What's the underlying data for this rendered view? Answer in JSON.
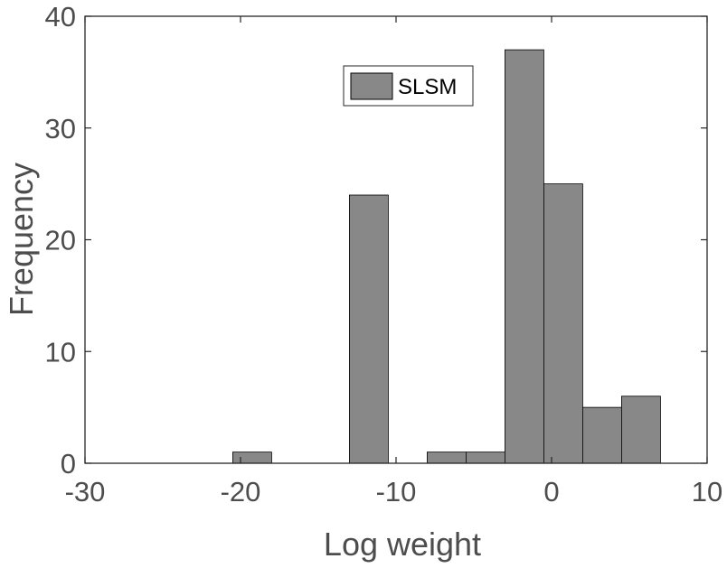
{
  "chart_data": {
    "type": "bar",
    "xlabel": "Log weight",
    "ylabel": "Frequency",
    "xlim": [
      -30,
      10
    ],
    "ylim": [
      0,
      40
    ],
    "xticks": [
      "-30",
      "-20",
      "-10",
      "0",
      "10"
    ],
    "yticks": [
      "0",
      "10",
      "20",
      "30",
      "40"
    ],
    "bin_edges": [
      -20.5,
      -18,
      -15.5,
      -13,
      -10.5,
      -8,
      -5.5,
      -3,
      -0.5,
      2,
      4.5,
      7
    ],
    "series": [
      {
        "name": "SLSM",
        "values": [
          1,
          0,
          0,
          24,
          0,
          1,
          1,
          37,
          25,
          5,
          6
        ]
      }
    ],
    "legend": {
      "position": "top",
      "entries": [
        "SLSM"
      ]
    },
    "grid": false,
    "colors": {
      "bar_fill": "#888888",
      "bar_edge": "#000000",
      "axis": "#262626",
      "text": "#4d4d4d"
    }
  }
}
